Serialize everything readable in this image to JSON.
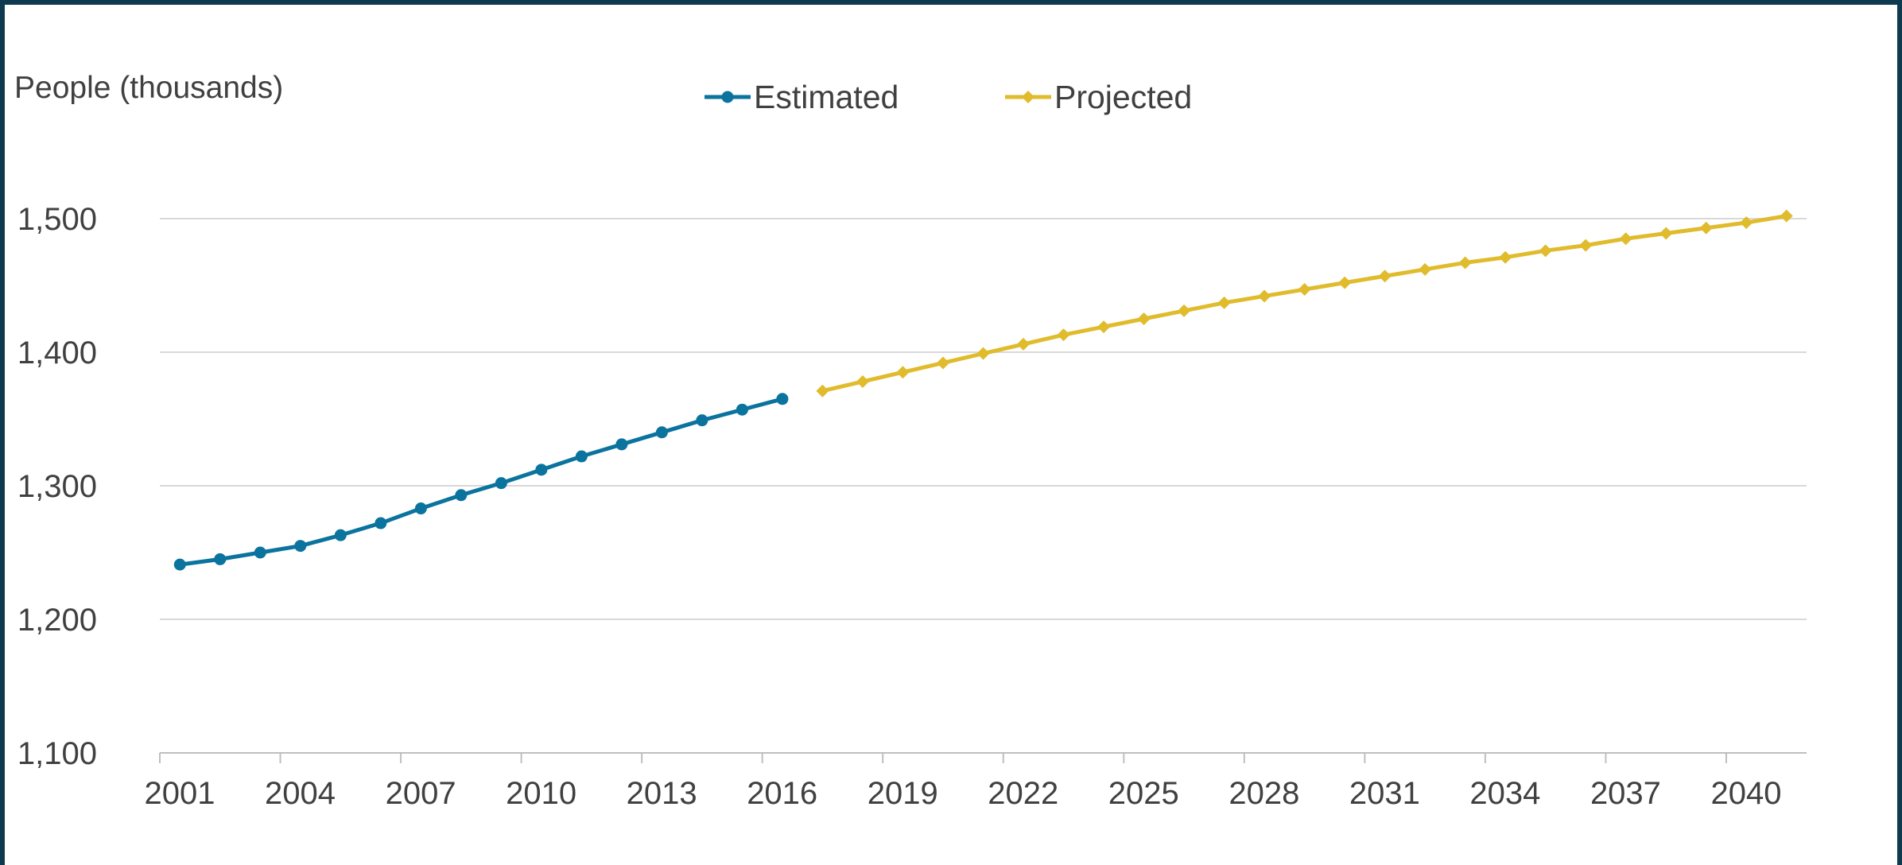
{
  "chart_data": {
    "type": "line",
    "ylabel": "People (thousands)",
    "xlabel": "",
    "ylim": [
      1100,
      1500
    ],
    "yticks": [
      1100,
      1200,
      1300,
      1400,
      1500
    ],
    "ytick_labels": [
      "1,100",
      "1,200",
      "1,300",
      "1,400",
      "1,500"
    ],
    "xticks": [
      2001,
      2004,
      2007,
      2010,
      2013,
      2016,
      2019,
      2022,
      2025,
      2028,
      2031,
      2034,
      2037,
      2040
    ],
    "xtick_labels": [
      "2001",
      "2004",
      "2007",
      "2010",
      "2013",
      "2016",
      "2019",
      "2022",
      "2025",
      "2028",
      "2031",
      "2034",
      "2037",
      "2040"
    ],
    "grid": true,
    "legend_position": "top-center",
    "series": [
      {
        "name": "Estimated",
        "color": "#0a739e",
        "marker": "circle",
        "x": [
          2001,
          2002,
          2003,
          2004,
          2005,
          2006,
          2007,
          2008,
          2009,
          2010,
          2011,
          2012,
          2013,
          2014,
          2015,
          2016
        ],
        "values": [
          1241,
          1245,
          1250,
          1255,
          1263,
          1272,
          1283,
          1293,
          1302,
          1312,
          1322,
          1331,
          1340,
          1349,
          1357,
          1365
        ]
      },
      {
        "name": "Projected",
        "color": "#e0bb2c",
        "marker": "diamond",
        "x": [
          2017,
          2018,
          2019,
          2020,
          2021,
          2022,
          2023,
          2024,
          2025,
          2026,
          2027,
          2028,
          2029,
          2030,
          2031,
          2032,
          2033,
          2034,
          2035,
          2036,
          2037,
          2038,
          2039,
          2040,
          2041
        ],
        "values": [
          1371,
          1378,
          1385,
          1392,
          1399,
          1406,
          1413,
          1419,
          1425,
          1431,
          1437,
          1442,
          1447,
          1452,
          1457,
          1462,
          1467,
          1471,
          1476,
          1480,
          1485,
          1489,
          1493,
          1497,
          1502
        ]
      }
    ]
  }
}
